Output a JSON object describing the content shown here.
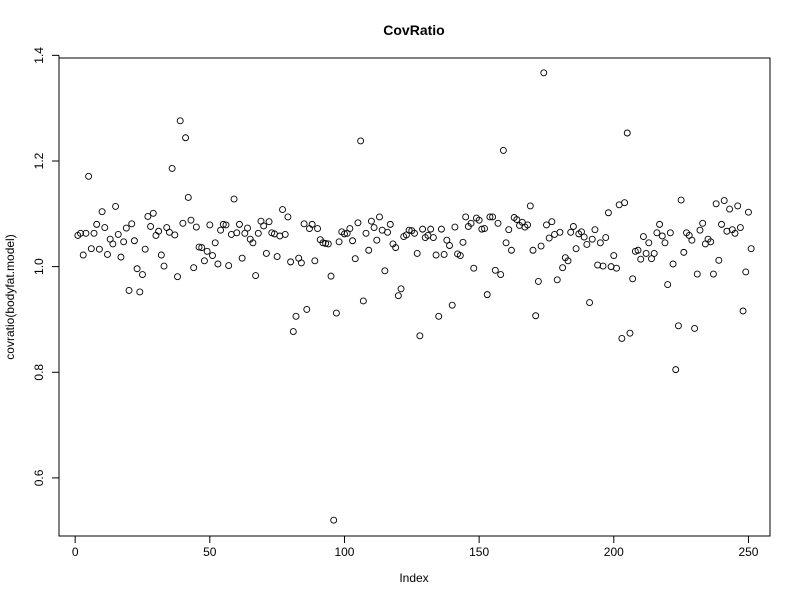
{
  "chart_data": {
    "type": "scatter",
    "title": "CovRatio",
    "xlabel": "Index",
    "ylabel": "covratio(bodyfat.model)",
    "xlim": [
      -6,
      258
    ],
    "ylim": [
      0.49,
      1.395
    ],
    "x_ticks": [
      0,
      50,
      100,
      150,
      200,
      250
    ],
    "y_ticks": [
      0.6,
      0.8,
      1.0,
      1.2,
      1.4
    ],
    "x_tick_labels": [
      "0",
      "50",
      "100",
      "150",
      "200",
      "250"
    ],
    "y_tick_labels": [
      "0.6",
      "0.8",
      "1.0",
      "1.2",
      "1.4"
    ],
    "grid": false,
    "marker": "open-circle",
    "series": [
      {
        "values": [
          1.059,
          1.063,
          1.022,
          1.063,
          1.171,
          1.034,
          1.063,
          1.08,
          1.033,
          1.104,
          1.074,
          1.023,
          1.052,
          1.043,
          1.114,
          1.061,
          1.018,
          1.047,
          1.073,
          0.955,
          1.081,
          1.049,
          0.996,
          0.952,
          0.985,
          1.033,
          1.095,
          1.076,
          1.101,
          1.059,
          1.067,
          1.022,
          1.001,
          1.074,
          1.065,
          1.186,
          1.06,
          0.981,
          1.276,
          1.082,
          1.244,
          1.131,
          1.088,
          0.998,
          1.075,
          1.037,
          1.036,
          1.011,
          1.029,
          1.079,
          1.021,
          1.045,
          1.005,
          1.069,
          1.08,
          1.079,
          1.002,
          1.061,
          1.128,
          1.064,
          1.08,
          1.016,
          1.063,
          1.073,
          1.052,
          1.045,
          0.983,
          1.063,
          1.086,
          1.077,
          1.025,
          1.085,
          1.064,
          1.062,
          1.019,
          1.058,
          1.108,
          1.061,
          1.094,
          1.009,
          0.877,
          0.906,
          1.016,
          1.007,
          1.081,
          0.919,
          1.072,
          1.08,
          1.011,
          1.072,
          1.051,
          1.045,
          1.044,
          1.043,
          0.982,
          0.52,
          0.912,
          1.047,
          1.066,
          1.062,
          1.063,
          1.072,
          1.049,
          1.015,
          1.083,
          1.238,
          0.935,
          1.063,
          1.031,
          1.086,
          1.074,
          1.05,
          1.094,
          1.069,
          0.992,
          1.065,
          1.08,
          1.043,
          1.036,
          0.945,
          0.958,
          1.057,
          1.06,
          1.069,
          1.068,
          1.063,
          1.025,
          0.869,
          1.071,
          1.055,
          1.059,
          1.071,
          1.055,
          1.022,
          0.906,
          1.071,
          1.023,
          1.05,
          1.04,
          0.927,
          1.075,
          1.024,
          1.021,
          1.046,
          1.094,
          1.076,
          1.082,
          0.997,
          1.092,
          1.088,
          1.071,
          1.072,
          0.947,
          1.094,
          1.094,
          0.993,
          1.082,
          0.985,
          1.22,
          1.045,
          1.07,
          1.031,
          1.093,
          1.089,
          1.078,
          1.084,
          1.075,
          1.079,
          1.115,
          1.031,
          0.907,
          0.972,
          1.039,
          1.367,
          1.079,
          1.054,
          1.085,
          1.061,
          0.975,
          1.065,
          0.998,
          1.017,
          1.011,
          1.065,
          1.076,
          1.034,
          1.062,
          1.066,
          1.056,
          1.042,
          0.932,
          1.052,
          1.07,
          1.003,
          1.045,
          1.001,
          1.055,
          1.102,
          1.0,
          1.021,
          0.997,
          1.117,
          0.864,
          1.121,
          1.253,
          0.874,
          0.977,
          1.029,
          1.031,
          1.014,
          1.057,
          1.025,
          1.045,
          1.015,
          1.025,
          1.064,
          1.08,
          1.058,
          1.045,
          0.966,
          1.064,
          1.005,
          0.805,
          0.888,
          1.126,
          1.027,
          1.064,
          1.059,
          1.05,
          0.883,
          0.986,
          1.069,
          1.082,
          1.043,
          1.052,
          1.047,
          0.986,
          1.119,
          1.012,
          1.08,
          1.125,
          1.067,
          1.109,
          1.07,
          1.063,
          1.115,
          1.074,
          0.916,
          0.99,
          1.103,
          1.034
        ]
      }
    ]
  }
}
